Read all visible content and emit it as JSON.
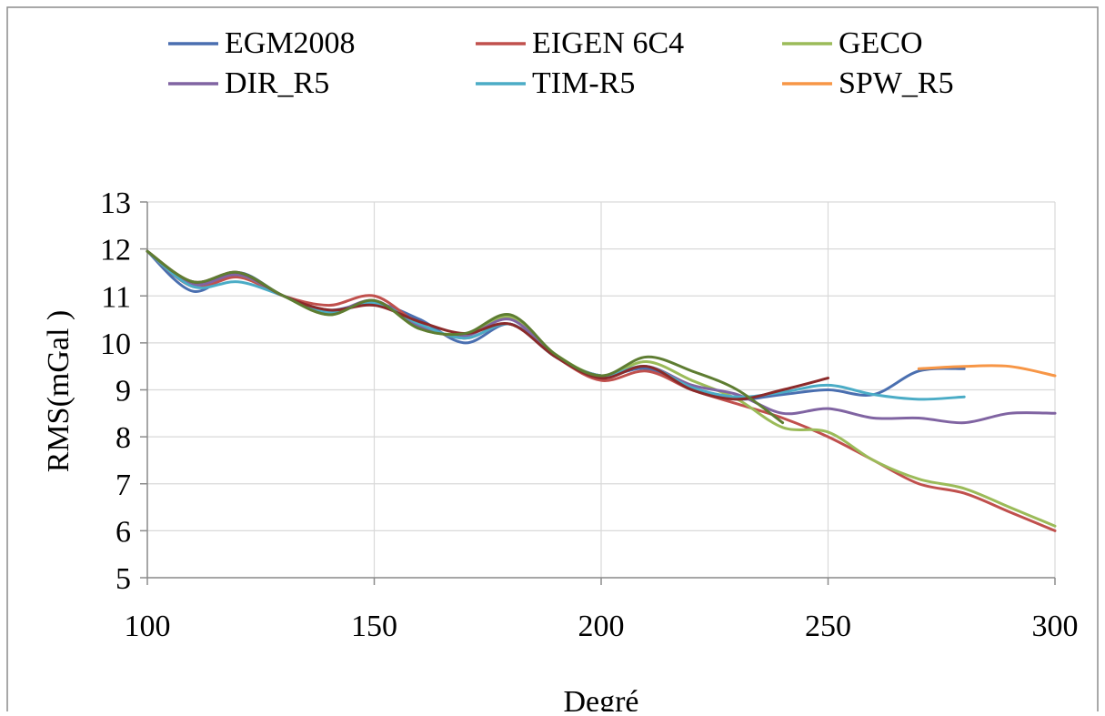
{
  "chart_data": {
    "type": "line",
    "title": "",
    "xlabel": "Degré",
    "ylabel": "RMS(mGal )",
    "xlim": [
      100,
      300
    ],
    "ylim": [
      5,
      13
    ],
    "xticks": [
      100,
      150,
      200,
      250,
      300
    ],
    "yticks": [
      5,
      6,
      7,
      8,
      9,
      10,
      11,
      12,
      13
    ],
    "grid": true,
    "legend_position": "top",
    "series": [
      {
        "name": "EGM2008",
        "color": "#4a6fb0",
        "x": [
          100,
          110,
          120,
          130,
          140,
          150,
          160,
          170,
          180,
          190,
          200,
          210,
          220,
          230,
          240,
          250,
          260,
          270,
          280
        ],
        "y": [
          11.95,
          11.1,
          11.5,
          11.0,
          10.7,
          10.85,
          10.5,
          10.0,
          10.4,
          9.7,
          9.3,
          9.45,
          9.0,
          8.8,
          8.9,
          9.0,
          8.9,
          9.4,
          9.45
        ]
      },
      {
        "name": "EIGEN 6C4",
        "color": "#c0504d",
        "x": [
          100,
          110,
          120,
          130,
          140,
          150,
          160,
          170,
          180,
          190,
          200,
          210,
          220,
          230,
          240,
          250,
          260,
          270,
          280,
          290,
          300
        ],
        "y": [
          11.95,
          11.2,
          11.4,
          11.0,
          10.8,
          11.0,
          10.4,
          10.1,
          10.4,
          9.7,
          9.2,
          9.4,
          9.0,
          8.7,
          8.4,
          8.0,
          7.5,
          7.0,
          6.8,
          6.4,
          6.0
        ]
      },
      {
        "name": "GECO",
        "color": "#9bbb59",
        "x": [
          100,
          110,
          120,
          130,
          140,
          150,
          160,
          170,
          180,
          190,
          200,
          210,
          220,
          230,
          240,
          250,
          260,
          270,
          280,
          290,
          300
        ],
        "y": [
          11.95,
          11.3,
          11.45,
          11.0,
          10.6,
          10.9,
          10.3,
          10.2,
          10.55,
          9.75,
          9.3,
          9.6,
          9.2,
          8.8,
          8.2,
          8.1,
          7.5,
          7.1,
          6.9,
          6.5,
          6.1
        ]
      },
      {
        "name": "DIR_R5",
        "color": "#8064a2",
        "x": [
          100,
          110,
          120,
          130,
          140,
          150,
          160,
          170,
          180,
          190,
          200,
          210,
          220,
          230,
          240,
          250,
          260,
          270,
          280,
          290,
          300
        ],
        "y": [
          11.95,
          11.25,
          11.45,
          11.0,
          10.65,
          10.9,
          10.35,
          10.15,
          10.5,
          9.7,
          9.3,
          9.5,
          9.1,
          8.9,
          8.5,
          8.6,
          8.4,
          8.4,
          8.3,
          8.5,
          8.5
        ]
      },
      {
        "name": "TIM-R5",
        "color": "#4bacc6",
        "x": [
          100,
          110,
          120,
          130,
          140,
          150,
          160,
          170,
          180,
          190,
          200,
          210,
          220,
          230,
          240,
          250,
          260,
          270,
          280
        ],
        "y": [
          11.95,
          11.2,
          11.3,
          11.0,
          10.65,
          10.85,
          10.4,
          10.1,
          10.4,
          9.7,
          9.3,
          9.5,
          9.05,
          8.85,
          8.95,
          9.1,
          8.9,
          8.8,
          8.85
        ]
      },
      {
        "name": "SPW_R5",
        "color": "#f79646",
        "x": [
          270,
          280,
          290,
          300
        ],
        "y": [
          9.45,
          9.5,
          9.5,
          9.3
        ]
      },
      {
        "name": "",
        "color": "#8b2a2a",
        "x": [
          100,
          110,
          120,
          130,
          140,
          150,
          160,
          170,
          180,
          190,
          200,
          210,
          220,
          230,
          240,
          250
        ],
        "y": [
          11.95,
          11.3,
          11.5,
          11.0,
          10.7,
          10.8,
          10.45,
          10.2,
          10.4,
          9.7,
          9.25,
          9.5,
          9.0,
          8.8,
          9.0,
          9.25
        ]
      },
      {
        "name": "",
        "color": "#5e7d32",
        "x": [
          100,
          110,
          120,
          130,
          140,
          150,
          160,
          170,
          180,
          190,
          200,
          210,
          220,
          230,
          240
        ],
        "y": [
          11.95,
          11.3,
          11.5,
          11.0,
          10.6,
          10.9,
          10.3,
          10.2,
          10.6,
          9.75,
          9.3,
          9.7,
          9.4,
          9.0,
          8.3
        ]
      }
    ]
  }
}
